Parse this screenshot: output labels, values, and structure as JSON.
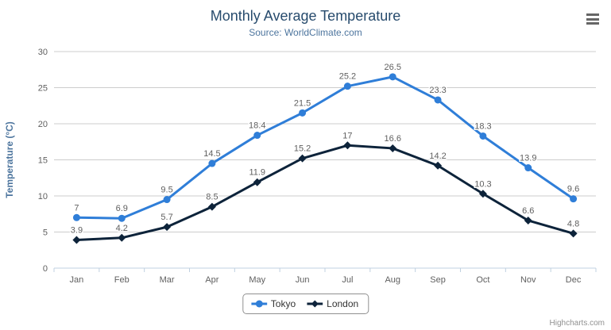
{
  "chart_data": {
    "type": "line",
    "title": "Monthly Average Temperature",
    "subtitle": "Source: WorldClimate.com",
    "categories": [
      "Jan",
      "Feb",
      "Mar",
      "Apr",
      "May",
      "Jun",
      "Jul",
      "Aug",
      "Sep",
      "Oct",
      "Nov",
      "Dec"
    ],
    "series": [
      {
        "name": "Tokyo",
        "color": "#2f7ed8",
        "marker": "circle",
        "values": [
          7,
          6.9,
          9.5,
          14.5,
          18.4,
          21.5,
          25.2,
          26.5,
          23.3,
          18.3,
          13.9,
          9.6
        ]
      },
      {
        "name": "London",
        "color": "#0d233a",
        "marker": "diamond",
        "values": [
          3.9,
          4.2,
          5.7,
          8.5,
          11.9,
          15.2,
          17,
          16.6,
          14.2,
          10.3,
          6.6,
          4.8
        ]
      }
    ],
    "xlabel": "",
    "ylabel": "Temperature (°C)",
    "ylim": [
      0,
      30
    ],
    "yticks": [
      0,
      5,
      10,
      15,
      20,
      25,
      30
    ],
    "grid": true,
    "legend_position": "bottom",
    "data_labels": true
  },
  "export_menu": {
    "icon": "hamburger-menu-icon"
  },
  "credits": {
    "text": "Highcharts.com"
  },
  "colors": {
    "title": "#274b6d",
    "subtitle": "#4d759e",
    "axis_title": "#4d759e",
    "axis_label": "#606060",
    "data_label": "#606060",
    "grid_line": "#cccccc",
    "axis_line": "#c0d0e0",
    "legend_text": "#333333",
    "legend_border": "#909090",
    "credits_text": "#909090"
  }
}
